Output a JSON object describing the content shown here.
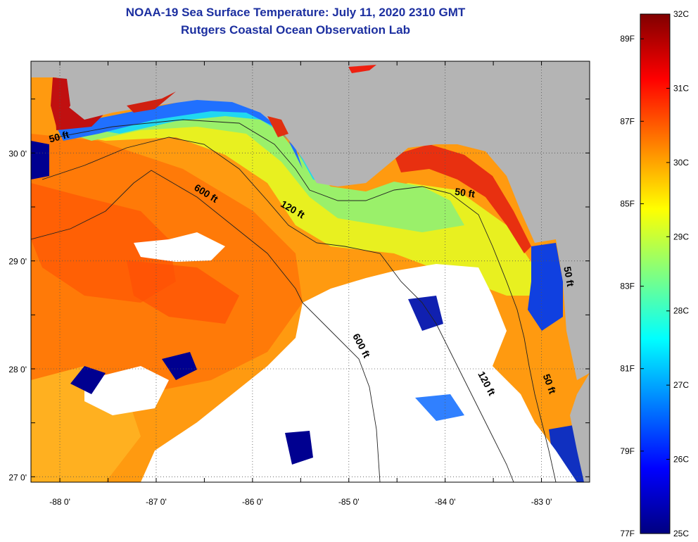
{
  "title": "NOAA-19 Sea Surface Temperature:  July 11, 2020 2310 GMT",
  "subtitle": "Rutgers Coastal Ocean Observation Lab",
  "map": {
    "lon_range": [
      -88.3,
      -82.5
    ],
    "lat_range": [
      26.95,
      30.85
    ],
    "lon_ticks": [
      {
        "value": -88,
        "label": "-88 0'"
      },
      {
        "value": -87,
        "label": "-87 0'"
      },
      {
        "value": -86,
        "label": "-86 0'"
      },
      {
        "value": -85,
        "label": "-85 0'"
      },
      {
        "value": -84,
        "label": "-84 0'"
      },
      {
        "value": -83,
        "label": "-83 0'"
      }
    ],
    "lat_ticks": [
      {
        "value": 27,
        "label": "27 0'"
      },
      {
        "value": 28,
        "label": "28 0'"
      },
      {
        "value": 29,
        "label": "29 0'"
      },
      {
        "value": 30,
        "label": "30 0'"
      }
    ],
    "grid": "dotted",
    "land_color": "#b4b4b4",
    "cloud_color": "#ffffff",
    "contours": [
      {
        "label": "50 ft",
        "lon": -88.0,
        "lat": 30.12,
        "angle": -15
      },
      {
        "label": "600 ft",
        "lon": -86.5,
        "lat": 29.6,
        "angle": 32
      },
      {
        "label": "120 ft",
        "lon": -85.6,
        "lat": 29.45,
        "angle": 30
      },
      {
        "label": "50 ft",
        "lon": -83.8,
        "lat": 29.6,
        "angle": 8
      },
      {
        "label": "600 ft",
        "lon": -84.9,
        "lat": 28.2,
        "angle": 62
      },
      {
        "label": "120 ft",
        "lon": -83.6,
        "lat": 27.85,
        "angle": 62
      },
      {
        "label": "50 ft",
        "lon": -82.95,
        "lat": 27.85,
        "angle": 70
      },
      {
        "label": "50 ft",
        "lon": -82.75,
        "lat": 28.85,
        "angle": 80
      }
    ]
  },
  "colorbar": {
    "celsius_ticks": [
      "32C",
      "31C",
      "30C",
      "29C",
      "28C",
      "27C",
      "26C",
      "25C"
    ],
    "fahrenheit_ticks": [
      "89F",
      "87F",
      "85F",
      "83F",
      "81F",
      "79F",
      "77F"
    ],
    "fahrenheit_values": [
      89,
      87,
      85,
      83,
      81,
      79,
      77
    ],
    "range_c": [
      25,
      32
    ],
    "colormap": [
      "#000080",
      "#0000ff",
      "#0080ff",
      "#00ffff",
      "#80ff80",
      "#ffff00",
      "#ff8000",
      "#ff0000",
      "#800000"
    ]
  }
}
